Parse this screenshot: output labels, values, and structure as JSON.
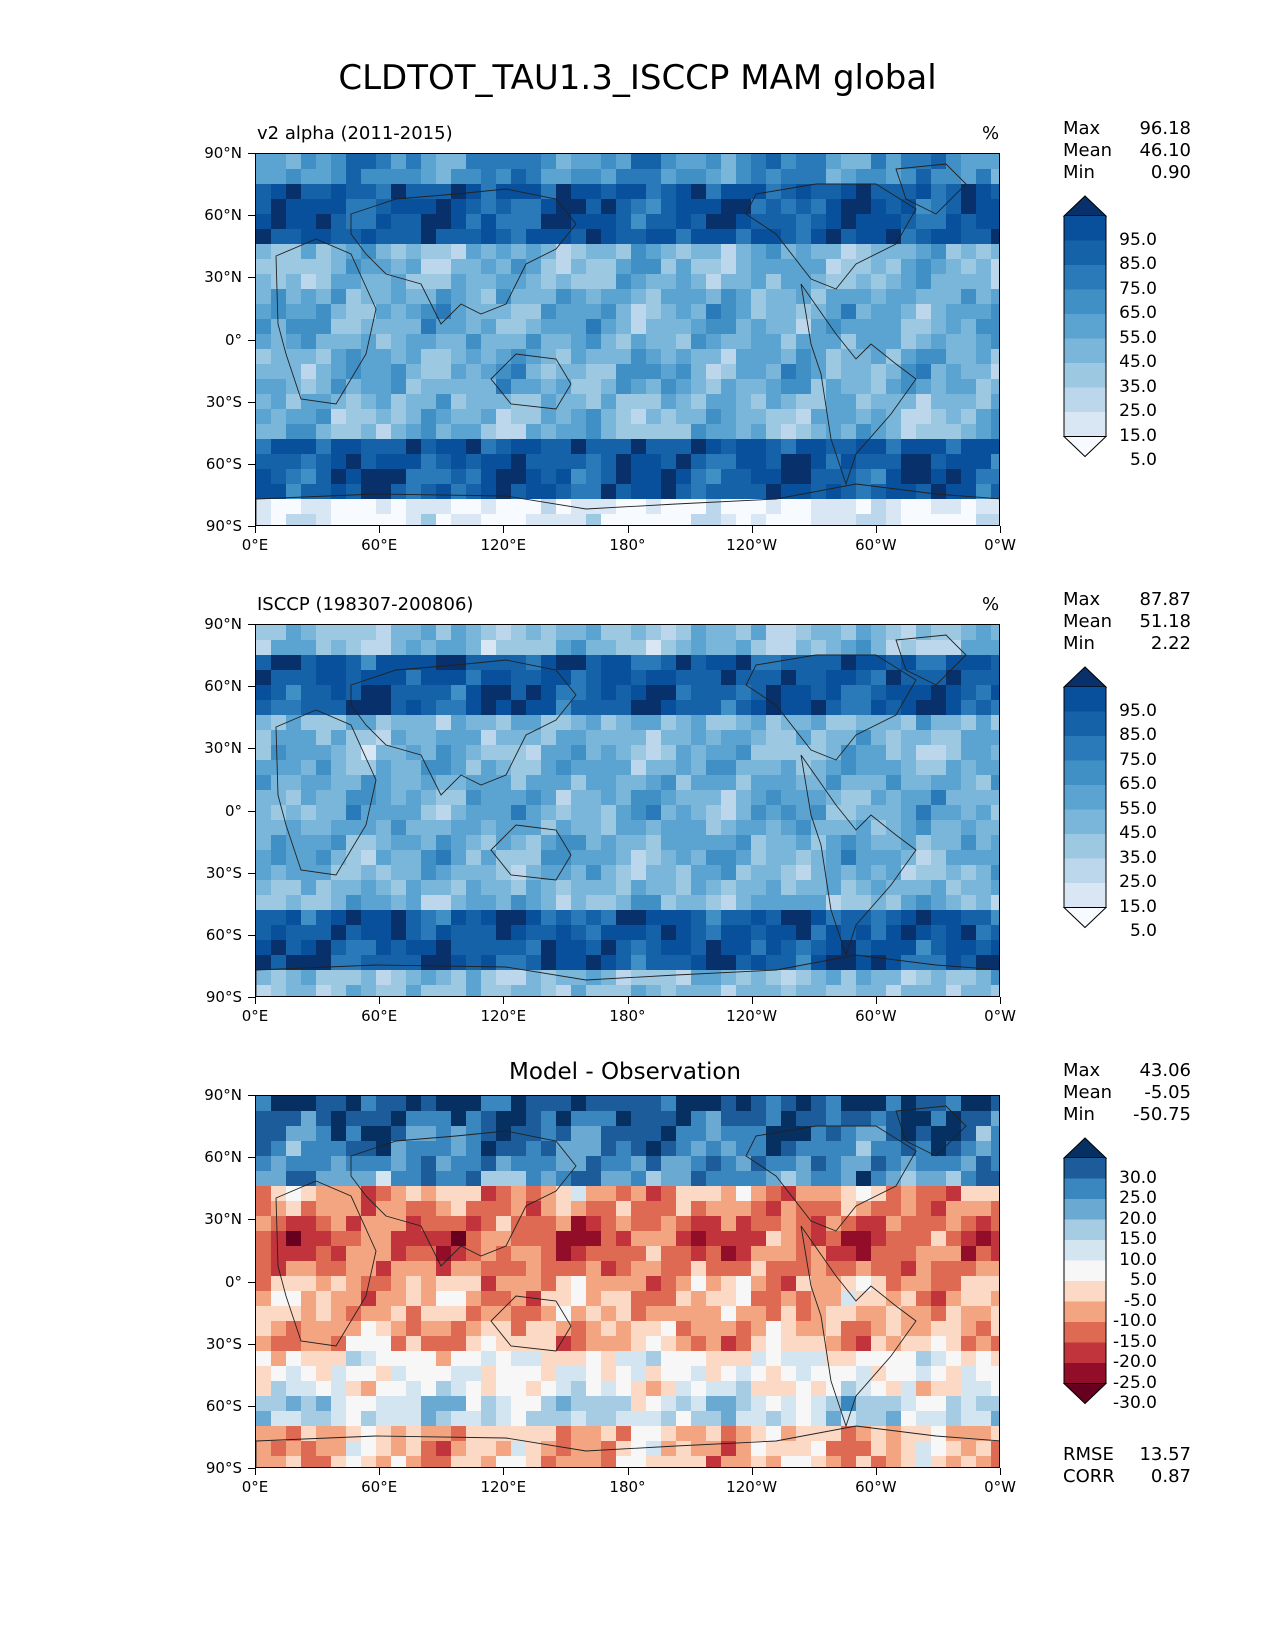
{
  "figure": {
    "title": "CLDTOT_TAU1.3_ISCCP MAM global"
  },
  "axes": {
    "x_ticks": [
      "0°E",
      "60°E",
      "120°E",
      "180°",
      "120°W",
      "60°W",
      "0°W"
    ],
    "y_ticks": [
      "90°N",
      "60°N",
      "30°N",
      "0°",
      "30°S",
      "60°S",
      "90°S"
    ]
  },
  "panels": [
    {
      "id": "model",
      "title_left": "v2 alpha (2011-2015)",
      "title_center": "",
      "unit": "%",
      "stats": [
        {
          "label": "Max",
          "value": "96.18"
        },
        {
          "label": "Mean",
          "value": "46.10"
        },
        {
          "label": "Min",
          "value": "0.90"
        }
      ],
      "colorbar": {
        "labels": [
          "95.0",
          "85.0",
          "75.0",
          "65.0",
          "55.0",
          "45.0",
          "35.0",
          "25.0",
          "15.0",
          "5.0"
        ],
        "colors": [
          "#08306b",
          "#08509b",
          "#1562a9",
          "#2a7ab9",
          "#4090c5",
          "#5ba3d0",
          "#7ab6d9",
          "#9cc9e1",
          "#bcd7eb",
          "#d9e7f5",
          "#f7fbff"
        ]
      },
      "extra_stats": []
    },
    {
      "id": "obs",
      "title_left": "ISCCP (198307-200806)",
      "title_center": "",
      "unit": "%",
      "stats": [
        {
          "label": "Max",
          "value": "87.87"
        },
        {
          "label": "Mean",
          "value": "51.18"
        },
        {
          "label": "Min",
          "value": "2.22"
        }
      ],
      "colorbar": {
        "labels": [
          "95.0",
          "85.0",
          "75.0",
          "65.0",
          "55.0",
          "45.0",
          "35.0",
          "25.0",
          "15.0",
          "5.0"
        ],
        "colors": [
          "#08306b",
          "#08509b",
          "#1562a9",
          "#2a7ab9",
          "#4090c5",
          "#5ba3d0",
          "#7ab6d9",
          "#9cc9e1",
          "#bcd7eb",
          "#d9e7f5",
          "#f7fbff"
        ]
      },
      "extra_stats": []
    },
    {
      "id": "diff",
      "title_left": "",
      "title_center": "Model - Observation",
      "unit": "",
      "stats": [
        {
          "label": "Max",
          "value": "43.06"
        },
        {
          "label": "Mean",
          "value": "-5.05"
        },
        {
          "label": "Min",
          "value": "-50.75"
        }
      ],
      "colorbar": {
        "labels": [
          "30.0",
          "25.0",
          "20.0",
          "15.0",
          "10.0",
          "5.0",
          "-5.0",
          "-10.0",
          "-15.0",
          "-20.0",
          "-25.0",
          "-30.0"
        ],
        "colors": [
          "#053061",
          "#1c5c9a",
          "#3a87bf",
          "#6aa9d1",
          "#a6cce3",
          "#d2e5f0",
          "#f7f7f7",
          "#fbd9c5",
          "#f3a481",
          "#df6a54",
          "#c1343c",
          "#920d27",
          "#67001f"
        ]
      },
      "extra_stats": [
        {
          "label": "RMSE",
          "value": "13.57"
        },
        {
          "label": "CORR",
          "value": "0.87"
        }
      ]
    }
  ]
}
